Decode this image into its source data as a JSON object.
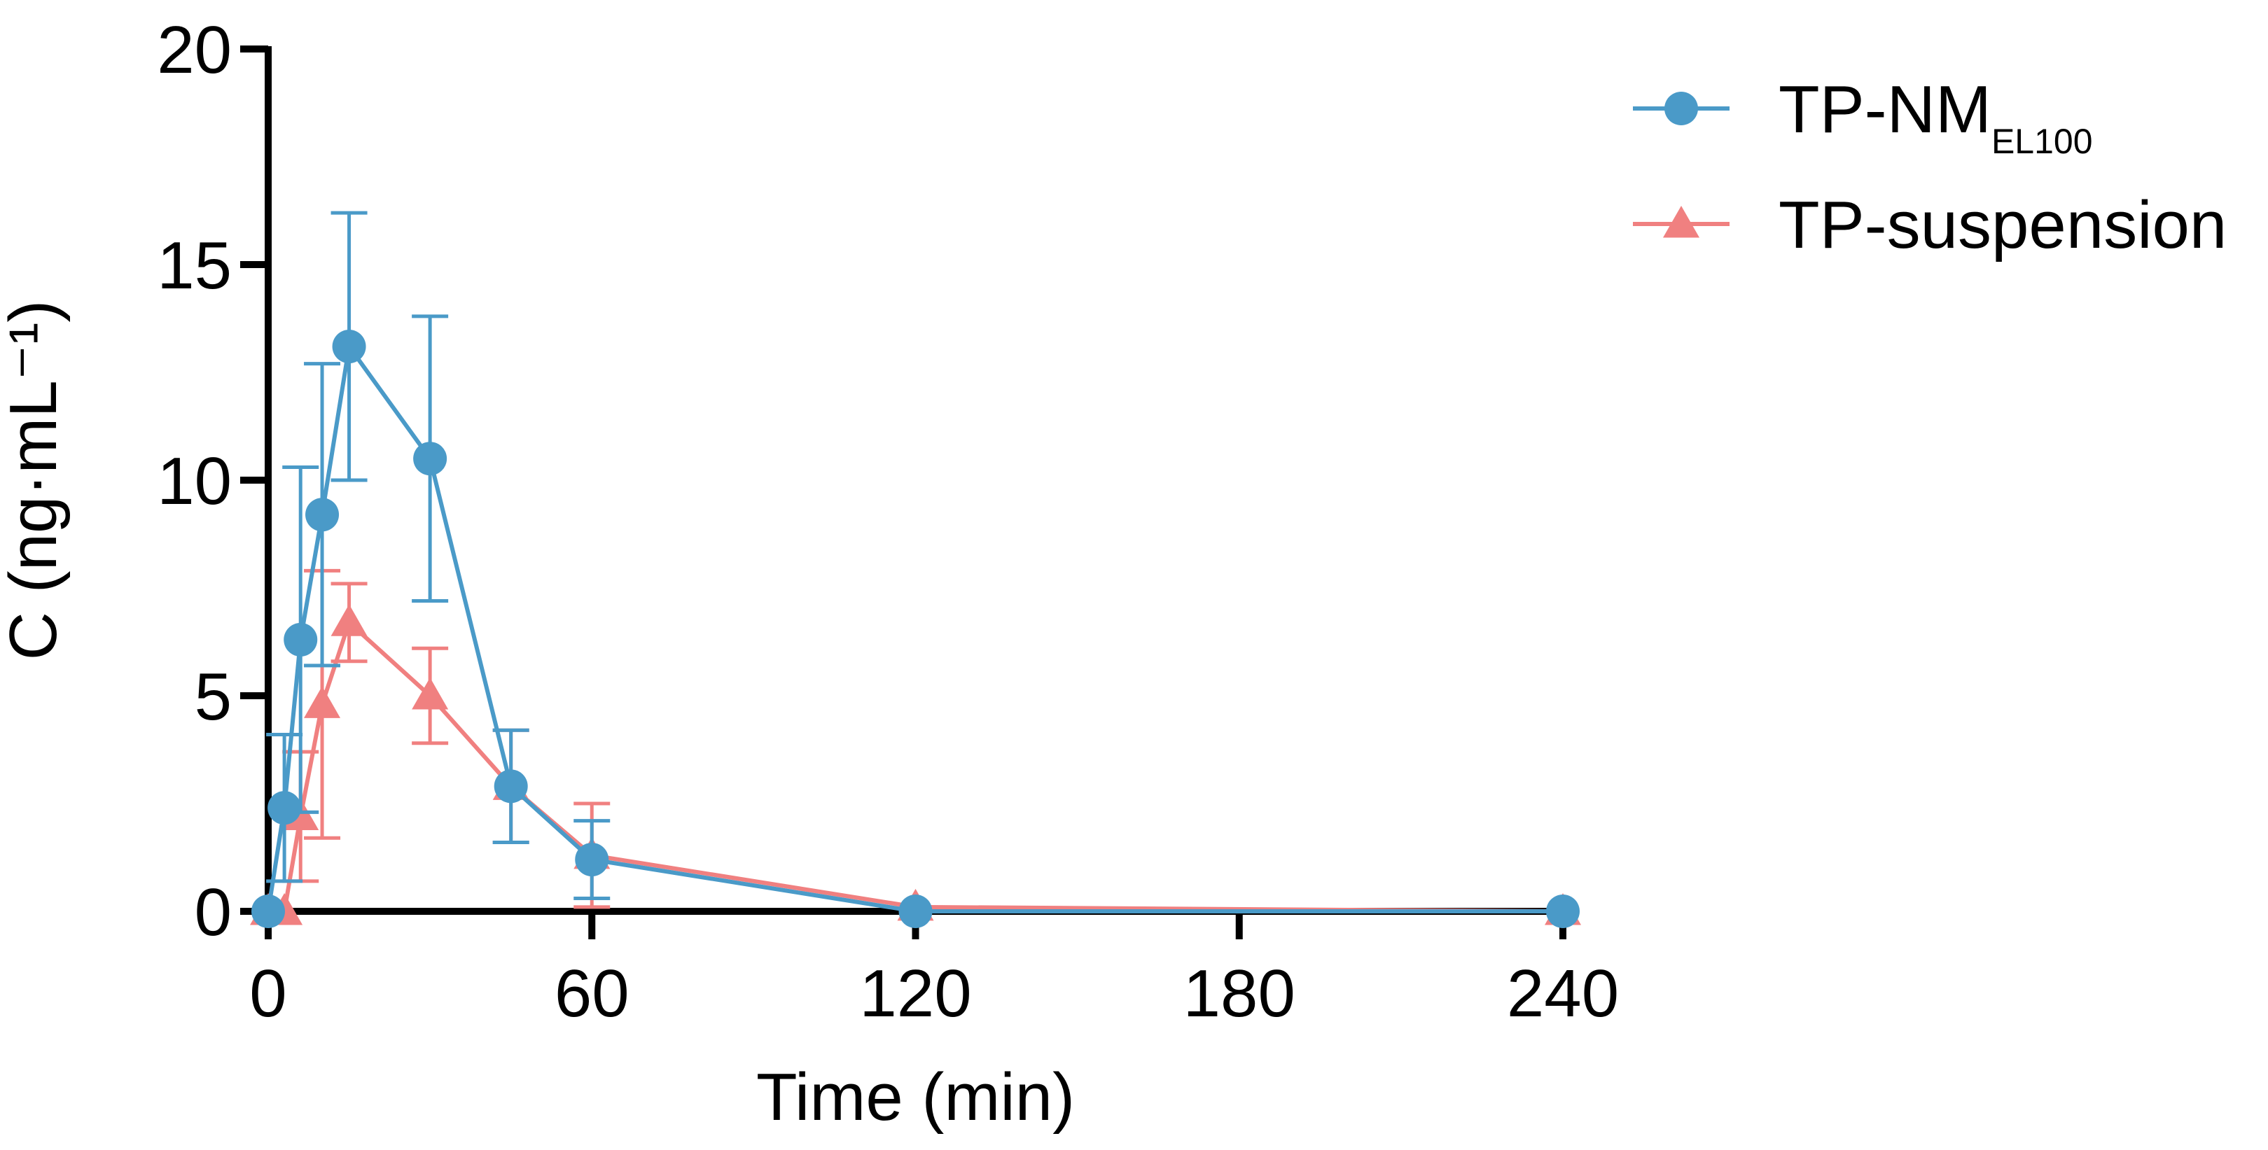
{
  "chart_data": {
    "type": "line",
    "xlabel": "Time (min)",
    "ylabel": "C (ng·mL⁻¹)",
    "xlim": [
      0,
      240
    ],
    "ylim": [
      0,
      20
    ],
    "xticks": [
      0,
      60,
      120,
      180,
      240
    ],
    "yticks": [
      0,
      5,
      10,
      15,
      20
    ],
    "grid": false,
    "legend_position": "top-right",
    "series": [
      {
        "name": "TP-NM",
        "name_subscript": "EL100",
        "color": "#4a9ac8",
        "marker": "circle",
        "x": [
          0,
          3,
          6,
          10,
          15,
          30,
          45,
          60,
          120,
          240
        ],
        "y": [
          0,
          2.4,
          6.3,
          9.2,
          13.1,
          10.5,
          2.9,
          1.2,
          0,
          0
        ],
        "err": [
          0,
          1.7,
          4.0,
          3.5,
          3.1,
          3.3,
          1.3,
          0.9,
          0,
          0
        ]
      },
      {
        "name": "TP-suspension",
        "color": "#f08080",
        "marker": "triangle",
        "x": [
          0,
          3,
          6,
          10,
          15,
          30,
          45,
          60,
          120,
          240
        ],
        "y": [
          0,
          0,
          2.2,
          4.8,
          6.7,
          5.0,
          2.9,
          1.3,
          0.1,
          0
        ],
        "err": [
          0,
          0,
          1.5,
          3.1,
          0.9,
          1.1,
          1.3,
          1.2,
          0,
          0
        ]
      }
    ]
  }
}
